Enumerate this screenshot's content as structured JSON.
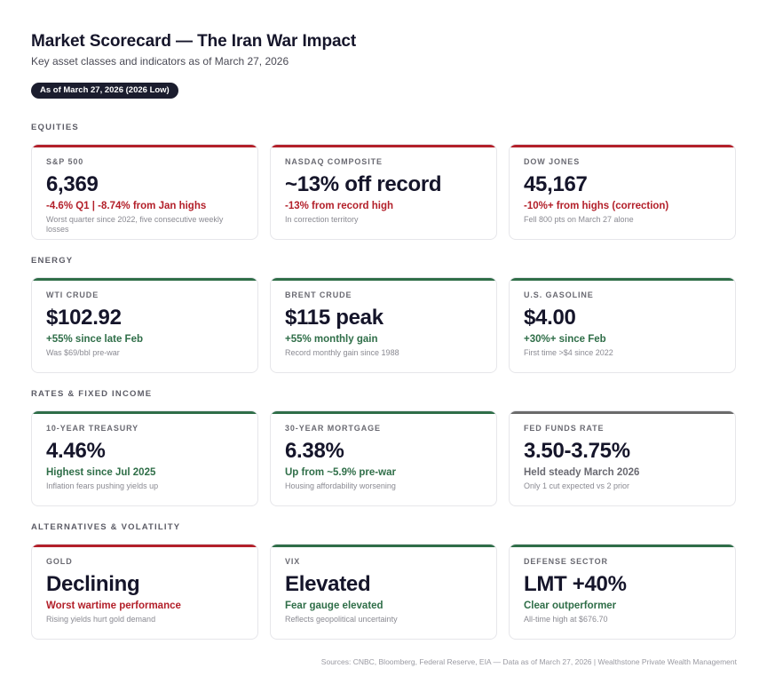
{
  "header": {
    "title": "Market Scorecard — The Iran War Impact",
    "subtitle": "Key asset classes and indicators as of March 27, 2026",
    "badge": "As of March 27, 2026 (2026 Low)"
  },
  "colors": {
    "negative": "#b3202a",
    "positive": "#2f6e48",
    "neutral": "#6b6b6b",
    "badge_bg": "#1b1d2e"
  },
  "sections": [
    {
      "label": "EQUITIES",
      "cards": [
        {
          "label": "S&P 500",
          "value": "6,369",
          "change": "-4.6% Q1 | -8.74% from Jan highs",
          "note": "Worst quarter since 2022, five consecutive weekly losses",
          "tone": "red"
        },
        {
          "label": "NASDAQ COMPOSITE",
          "value": "~13% off record",
          "change": "-13% from record high",
          "note": "In correction territory",
          "tone": "red"
        },
        {
          "label": "DOW JONES",
          "value": "45,167",
          "change": "-10%+ from highs (correction)",
          "note": "Fell 800 pts on March 27 alone",
          "tone": "red"
        }
      ]
    },
    {
      "label": "ENERGY",
      "cards": [
        {
          "label": "WTI CRUDE",
          "value": "$102.92",
          "change": "+55% since late Feb",
          "note": "Was $69/bbl pre-war",
          "tone": "green"
        },
        {
          "label": "BRENT CRUDE",
          "value": "$115 peak",
          "change": "+55% monthly gain",
          "note": "Record monthly gain since 1988",
          "tone": "green"
        },
        {
          "label": "U.S. GASOLINE",
          "value": "$4.00",
          "change": "+30%+ since Feb",
          "note": "First time >$4 since 2022",
          "tone": "green"
        }
      ]
    },
    {
      "label": "RATES & FIXED INCOME",
      "cards": [
        {
          "label": "10-YEAR TREASURY",
          "value": "4.46%",
          "change": "Highest since Jul 2025",
          "note": "Inflation fears pushing yields up",
          "tone": "green"
        },
        {
          "label": "30-YEAR MORTGAGE",
          "value": "6.38%",
          "change": "Up from ~5.9% pre-war",
          "note": "Housing affordability worsening",
          "tone": "green"
        },
        {
          "label": "FED FUNDS RATE",
          "value": "3.50-3.75%",
          "change": "Held steady March 2026",
          "note": "Only 1 cut expected vs 2 prior",
          "tone": "gray"
        }
      ]
    },
    {
      "label": "ALTERNATIVES & VOLATILITY",
      "cards": [
        {
          "label": "GOLD",
          "value": "Declining",
          "change": "Worst wartime performance",
          "note": "Rising yields hurt gold demand",
          "tone": "red"
        },
        {
          "label": "VIX",
          "value": "Elevated",
          "change": "Fear gauge elevated",
          "note": "Reflects geopolitical uncertainty",
          "tone": "green"
        },
        {
          "label": "DEFENSE SECTOR",
          "value": "LMT +40%",
          "change": "Clear outperformer",
          "note": "All-time high at $676.70",
          "tone": "green"
        }
      ]
    }
  ],
  "footer": "Sources: CNBC, Bloomberg, Federal Reserve, EIA — Data as of March 27, 2026 | Wealthstone Private Wealth Management"
}
